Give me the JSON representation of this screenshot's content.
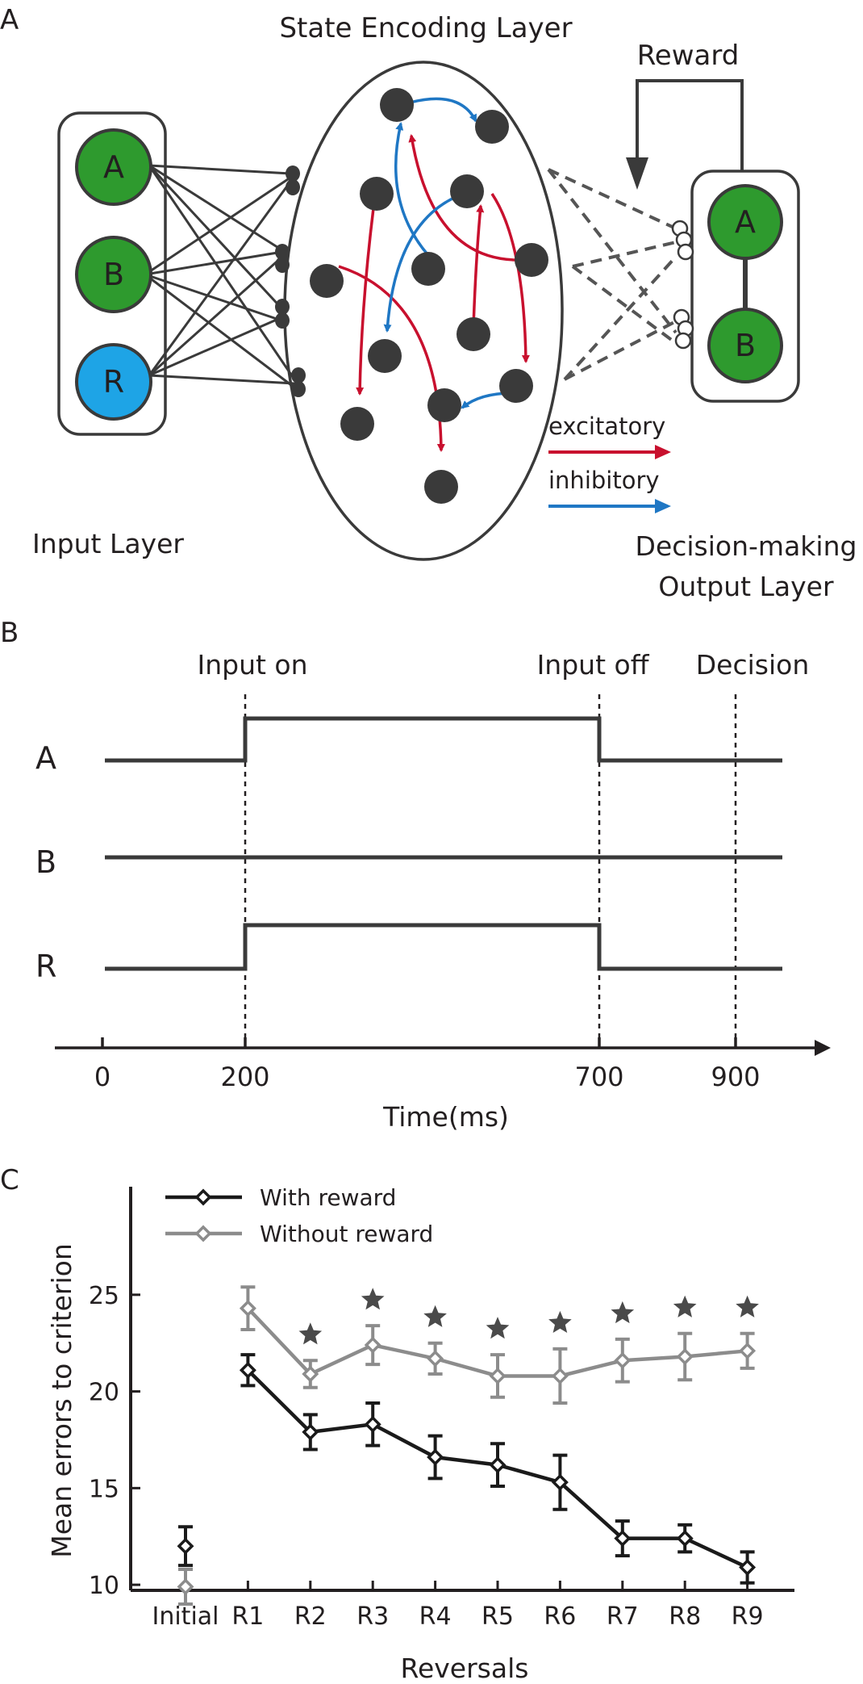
{
  "panel_a": {
    "label": "A",
    "state_layer_title": "State Encoding Layer",
    "reward_label": "Reward",
    "input_layer_label": "Input Layer",
    "output_layer_label_line1": "Decision-making",
    "output_layer_label_line2": "Output Layer",
    "input_nodes": [
      "A",
      "B",
      "R"
    ],
    "output_nodes": [
      "A",
      "B"
    ],
    "legend": [
      {
        "label": "excitatory",
        "color": "#c8102e"
      },
      {
        "label": "inhibitory",
        "color": "#1f77c4"
      }
    ],
    "colors": {
      "green": "#2e9a2e",
      "blue": "#1ea4e6",
      "neuron": "#3a3a3a"
    }
  },
  "panel_b": {
    "label": "B",
    "annotations": [
      "Input on",
      "Input off",
      "Decision"
    ],
    "rows": [
      {
        "label": "A",
        "on": 200,
        "off": 700
      },
      {
        "label": "B",
        "on": null,
        "off": null
      },
      {
        "label": "R",
        "on": 200,
        "off": 700
      }
    ],
    "ticks": [
      "0",
      "200",
      "700",
      "900"
    ],
    "xlabel": "Time(ms)"
  },
  "panel_c": {
    "label": "C",
    "chart_data": {
      "type": "line",
      "categories": [
        "Initial",
        "R1",
        "R2",
        "R3",
        "R4",
        "R5",
        "R6",
        "R7",
        "R8",
        "R9"
      ],
      "series": [
        {
          "name": "With reward",
          "color": "#1a1a1a",
          "values": [
            12.0,
            21.1,
            17.9,
            18.3,
            16.6,
            16.2,
            15.3,
            12.4,
            12.4,
            10.9
          ],
          "err": [
            1.0,
            0.8,
            0.9,
            1.1,
            1.1,
            1.1,
            1.4,
            0.9,
            0.7,
            0.8
          ]
        },
        {
          "name": "Without reward",
          "color": "#8c8c8c",
          "values": [
            9.9,
            24.3,
            20.9,
            22.4,
            21.7,
            20.8,
            20.8,
            21.6,
            21.8,
            22.1
          ],
          "err": [
            0.9,
            1.1,
            0.7,
            1.0,
            0.8,
            1.1,
            1.4,
            1.1,
            1.2,
            0.9
          ]
        }
      ],
      "significance": [
        false,
        false,
        true,
        true,
        true,
        true,
        true,
        true,
        true,
        true
      ],
      "xlabel": "Reversals",
      "ylabel": "Mean errors to criterion",
      "yticks": [
        "10",
        "15",
        "20",
        "25"
      ],
      "ylim": [
        8,
        28
      ]
    }
  }
}
